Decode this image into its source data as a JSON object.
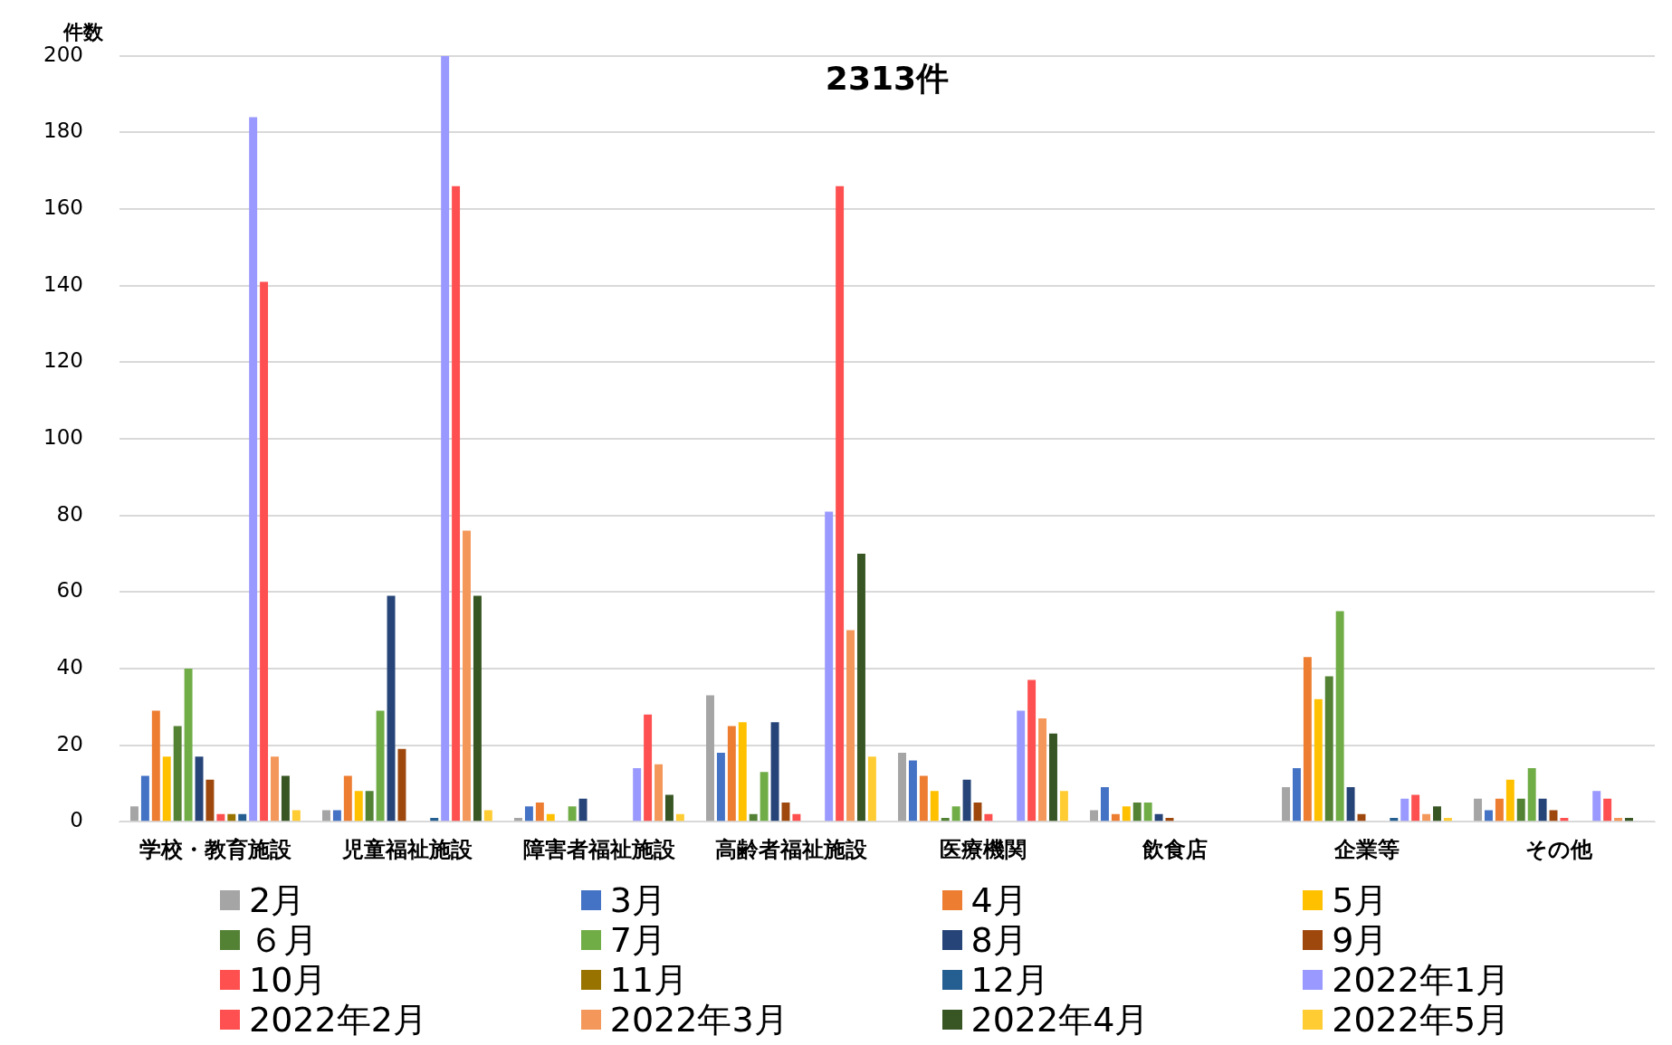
{
  "chart_data": {
    "type": "bar",
    "title": "2313件",
    "ylabel": "件数",
    "categories": [
      "学校・教育施設",
      "児童福祉施設",
      "障害者福祉施設",
      "高齢者福祉施設",
      "医療機関",
      "飲食店",
      "企業等",
      "その他"
    ],
    "series": [
      {
        "name": "2月",
        "color": "#a5a5a5",
        "values": [
          4,
          3,
          1,
          33,
          18,
          3,
          9,
          6
        ]
      },
      {
        "name": "3月",
        "color": "#4472c4",
        "values": [
          12,
          3,
          4,
          18,
          16,
          9,
          14,
          3
        ]
      },
      {
        "name": "4月",
        "color": "#ed7d31",
        "values": [
          29,
          12,
          5,
          25,
          12,
          2,
          43,
          6
        ]
      },
      {
        "name": "5月",
        "color": "#ffc000",
        "values": [
          17,
          8,
          2,
          26,
          8,
          4,
          32,
          11
        ]
      },
      {
        "name": "６月",
        "color": "#548235",
        "values": [
          25,
          8,
          0,
          2,
          1,
          5,
          38,
          6
        ]
      },
      {
        "name": "7月",
        "color": "#70ad47",
        "values": [
          40,
          29,
          4,
          13,
          4,
          5,
          55,
          14
        ]
      },
      {
        "name": "8月",
        "color": "#264478",
        "values": [
          17,
          59,
          6,
          26,
          11,
          2,
          9,
          6
        ]
      },
      {
        "name": "9月",
        "color": "#9e480e",
        "values": [
          11,
          19,
          0,
          5,
          5,
          1,
          2,
          3
        ]
      },
      {
        "name": "10月",
        "color": "#ff5050",
        "values": [
          2,
          0,
          0,
          2,
          2,
          0,
          0,
          1
        ]
      },
      {
        "name": "11月",
        "color": "#997300",
        "values": [
          2,
          0,
          0,
          0,
          0,
          0,
          0,
          0
        ]
      },
      {
        "name": "12月",
        "color": "#255e91",
        "values": [
          2,
          1,
          0,
          0,
          0,
          0,
          1,
          0
        ]
      },
      {
        "name": "2022年1月",
        "color": "#9999ff",
        "values": [
          184,
          200,
          14,
          81,
          29,
          0,
          6,
          8
        ]
      },
      {
        "name": "2022年2月",
        "color": "#fe5050",
        "values": [
          141,
          166,
          28,
          166,
          37,
          0,
          7,
          6
        ]
      },
      {
        "name": "2022年3月",
        "color": "#f4975a",
        "values": [
          17,
          76,
          15,
          50,
          27,
          0,
          2,
          1
        ]
      },
      {
        "name": "2022年4月",
        "color": "#375623",
        "values": [
          12,
          59,
          7,
          70,
          23,
          0,
          4,
          1
        ]
      },
      {
        "name": "2022年5月",
        "color": "#ffcc33",
        "values": [
          3,
          3,
          2,
          17,
          8,
          0,
          1,
          0
        ]
      }
    ],
    "ylim": [
      0,
      200
    ],
    "yticks": [
      0,
      20,
      40,
      60,
      80,
      100,
      120,
      140,
      160,
      180,
      200
    ],
    "grid": "y",
    "legend": "bottom"
  }
}
